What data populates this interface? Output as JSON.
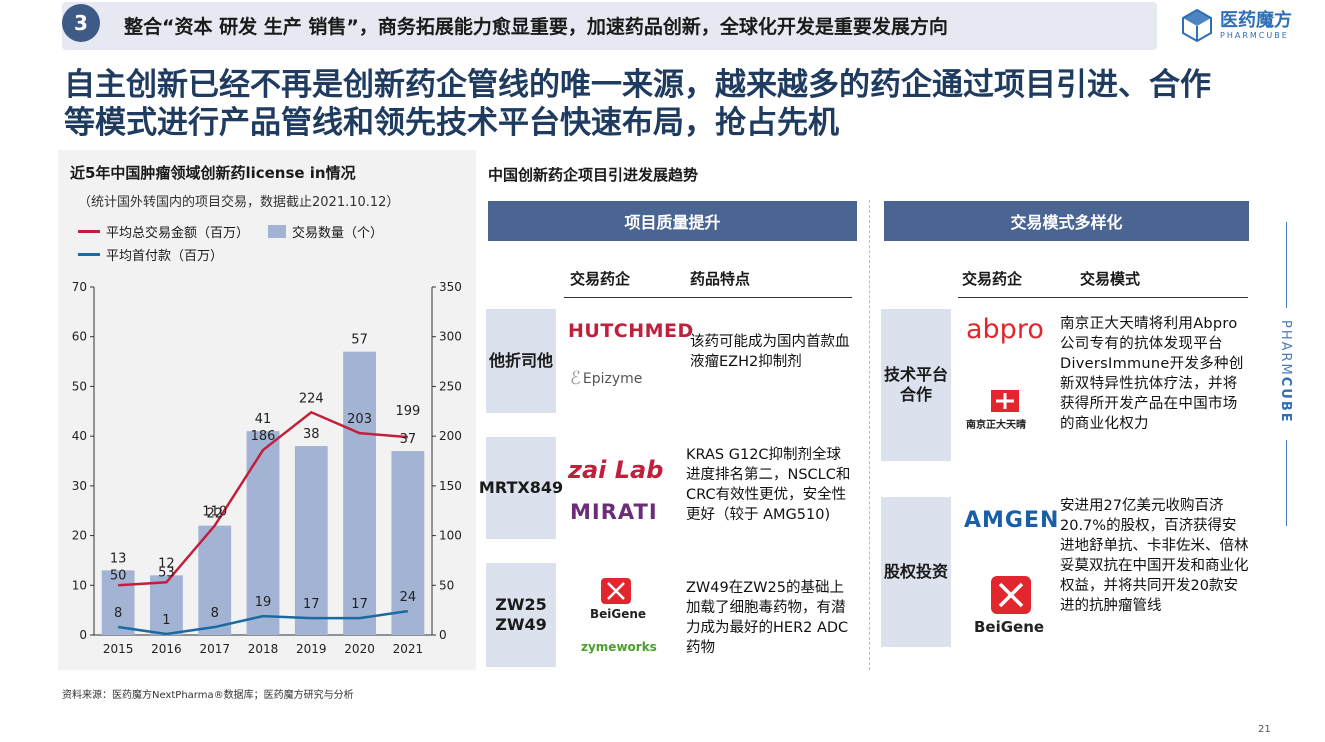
{
  "banner": {
    "number": "3",
    "text": "整合“资本 研发 生产 销售”，商务拓展能力愈显重要，加速药品创新，全球化开发是重要发展方向"
  },
  "logo": {
    "cn": "医药魔方",
    "en": "PHARMCUBE"
  },
  "headline": "自主创新已经不再是创新药企管线的唯一来源，越来越多的药企通过项目引进、合作等模式进行产品管线和领先技术平台快速布局，抢占先机",
  "chart": {
    "title": "近5年中国肿瘤领域创新药license in情况",
    "subtitle": "（统计国外转国内的项目交易，数据截止2021.10.12）",
    "legend": {
      "total": "平均总交易金额（百万）",
      "count": "交易数量（个）",
      "upfront": "平均首付款（百万）"
    }
  },
  "chart_data": {
    "type": "bar",
    "categories": [
      "2015",
      "2016",
      "2017",
      "2018",
      "2019",
      "2020",
      "2021"
    ],
    "series": [
      {
        "name": "交易数量（个）",
        "axis": "left",
        "values": [
          13,
          12,
          22,
          41,
          38,
          57,
          37
        ]
      },
      {
        "name": "平均总交易金额（百万）",
        "axis": "right",
        "values": [
          50,
          53,
          110,
          186,
          224,
          203,
          199
        ]
      },
      {
        "name": "平均首付款（百万）",
        "axis": "right",
        "values": [
          8,
          1,
          8,
          19,
          17,
          17,
          24
        ]
      }
    ],
    "ylim_left": [
      0,
      70
    ],
    "yticks_left": [
      0,
      10,
      20,
      30,
      40,
      50,
      60,
      70
    ],
    "ylim_right": [
      0,
      350
    ],
    "yticks_right": [
      0,
      50,
      100,
      150,
      200,
      250,
      300,
      350
    ],
    "colors": {
      "bar": "#a3b3d3",
      "total": "#c0203b",
      "upfront": "#1a6aa0"
    }
  },
  "source": "资料来源：医药魔方NextPharma®数据库；医药魔方研究与分析",
  "right": {
    "title": "中国创新药企项目引进发展趋势",
    "left_section": {
      "header": "项目质量提升",
      "col1": "交易药企",
      "col2": "药品特点",
      "rows": [
        {
          "label": "他折司他",
          "logos": [
            "HUTCHMED",
            "Epizyme"
          ],
          "desc": "该药可能成为国内首款血液瘤EZH2抑制剂"
        },
        {
          "label": "MRTX849",
          "logos": [
            "zai Lab",
            "MIRATI"
          ],
          "desc": "KRAS G12C抑制剂全球进度排名第二，NSCLC和CRC有效性更优，安全性更好（较于 AMG510)"
        },
        {
          "label": "ZW25 ZW49",
          "logos": [
            "BeiGene",
            "zymeworks"
          ],
          "desc": "ZW49在ZW25的基础上加载了细胞毒药物，有潜力成为最好的HER2 ADC药物"
        }
      ]
    },
    "right_section": {
      "header": "交易模式多样化",
      "col1": "交易药企",
      "col2": "交易模式",
      "rows": [
        {
          "label": "技术平台合作",
          "logos": [
            "abpro",
            "南京正大天晴"
          ],
          "desc": "南京正大天晴将利用Abpro公司专有的抗体发现平台DiversImmune开发多种创新双特异性抗体疗法，并将获得所开发产品在中国市场的商业化权力"
        },
        {
          "label": "股权投资",
          "logos": [
            "AMGEN",
            "BeiGene"
          ],
          "desc": "安进用27亿美元收购百济20.7%的股权，百济获得安进地舒单抗、卡非佐米、倍林妥莫双抗在中国开发和商业化权益，并将共同开发20款安进的抗肿瘤管线"
        }
      ]
    }
  },
  "side_brand": {
    "light": "PHARM",
    "bold": "CUBE"
  },
  "page_number": "21"
}
